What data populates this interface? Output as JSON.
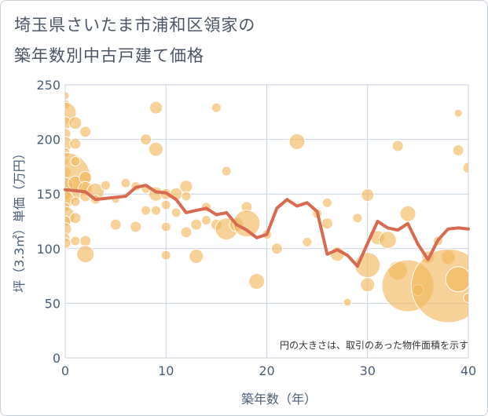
{
  "title_line1": "埼玉県さいたま市浦和区領家の",
  "title_line2": "築年数別中古戸建て価格",
  "chart_data": {
    "type": "scatter",
    "xlabel": "築年数（年）",
    "ylabel": "坪（3.3㎡）単価（万円）",
    "note": "円の大きさは、取引のあった物件面積を示す",
    "xlim": [
      0,
      40
    ],
    "ylim": [
      0,
      250
    ],
    "x_ticks": [
      0,
      10,
      20,
      30,
      40
    ],
    "y_ticks": [
      0,
      50,
      100,
      150,
      200,
      250
    ],
    "grid": true,
    "colors": {
      "bubble": "#f0b65a",
      "line": "#d86a52",
      "grid": "#c9d3e0",
      "axis_text": "#4b5e78"
    },
    "series": [
      {
        "type": "bubble",
        "points": [
          {
            "x": 0,
            "y": 240,
            "s": 5
          },
          {
            "x": 0,
            "y": 232,
            "s": 6
          },
          {
            "x": 0,
            "y": 224,
            "s": 14
          },
          {
            "x": 0,
            "y": 215,
            "s": 8
          },
          {
            "x": 0,
            "y": 205,
            "s": 7
          },
          {
            "x": 0,
            "y": 196,
            "s": 9
          },
          {
            "x": 0,
            "y": 188,
            "s": 6
          },
          {
            "x": 0,
            "y": 180,
            "s": 5
          },
          {
            "x": 0,
            "y": 170,
            "s": 7
          },
          {
            "x": 0,
            "y": 165,
            "s": 32
          },
          {
            "x": 0,
            "y": 158,
            "s": 10
          },
          {
            "x": 0,
            "y": 150,
            "s": 8
          },
          {
            "x": 0,
            "y": 145,
            "s": 11
          },
          {
            "x": 0,
            "y": 138,
            "s": 6
          },
          {
            "x": 0,
            "y": 130,
            "s": 12
          },
          {
            "x": 0,
            "y": 125,
            "s": 7
          },
          {
            "x": 0,
            "y": 118,
            "s": 8
          },
          {
            "x": 0,
            "y": 110,
            "s": 6
          },
          {
            "x": 0,
            "y": 105,
            "s": 7
          },
          {
            "x": 1,
            "y": 215,
            "s": 8
          },
          {
            "x": 1,
            "y": 196,
            "s": 7
          },
          {
            "x": 1,
            "y": 180,
            "s": 6
          },
          {
            "x": 1,
            "y": 160,
            "s": 9
          },
          {
            "x": 1,
            "y": 143,
            "s": 6
          },
          {
            "x": 1,
            "y": 128,
            "s": 7
          },
          {
            "x": 1,
            "y": 107,
            "s": 6
          },
          {
            "x": 2,
            "y": 207,
            "s": 7
          },
          {
            "x": 2,
            "y": 165,
            "s": 8
          },
          {
            "x": 2,
            "y": 155,
            "s": 9
          },
          {
            "x": 2,
            "y": 148,
            "s": 7
          },
          {
            "x": 2,
            "y": 107,
            "s": 7
          },
          {
            "x": 2,
            "y": 95,
            "s": 11
          },
          {
            "x": 3,
            "y": 152,
            "s": 11
          },
          {
            "x": 3,
            "y": 145,
            "s": 6
          },
          {
            "x": 4,
            "y": 158,
            "s": 6
          },
          {
            "x": 5,
            "y": 145,
            "s": 5
          },
          {
            "x": 5,
            "y": 122,
            "s": 7
          },
          {
            "x": 6,
            "y": 160,
            "s": 6
          },
          {
            "x": 7,
            "y": 157,
            "s": 6
          },
          {
            "x": 7,
            "y": 120,
            "s": 7
          },
          {
            "x": 8,
            "y": 200,
            "s": 7
          },
          {
            "x": 8,
            "y": 155,
            "s": 6
          },
          {
            "x": 8,
            "y": 135,
            "s": 6
          },
          {
            "x": 9,
            "y": 229,
            "s": 8
          },
          {
            "x": 9,
            "y": 191,
            "s": 9
          },
          {
            "x": 9,
            "y": 150,
            "s": 9
          },
          {
            "x": 9,
            "y": 135,
            "s": 6
          },
          {
            "x": 10,
            "y": 150,
            "s": 7
          },
          {
            "x": 10,
            "y": 140,
            "s": 6
          },
          {
            "x": 10,
            "y": 120,
            "s": 6
          },
          {
            "x": 10,
            "y": 94,
            "s": 6
          },
          {
            "x": 11,
            "y": 150,
            "s": 8
          },
          {
            "x": 11,
            "y": 133,
            "s": 6
          },
          {
            "x": 12,
            "y": 157,
            "s": 8
          },
          {
            "x": 12,
            "y": 148,
            "s": 6
          },
          {
            "x": 12,
            "y": 115,
            "s": 7
          },
          {
            "x": 13,
            "y": 93,
            "s": 9
          },
          {
            "x": 13,
            "y": 122,
            "s": 7
          },
          {
            "x": 14,
            "y": 138,
            "s": 6
          },
          {
            "x": 14,
            "y": 126,
            "s": 6
          },
          {
            "x": 15,
            "y": 229,
            "s": 6
          },
          {
            "x": 15,
            "y": 122,
            "s": 7
          },
          {
            "x": 16,
            "y": 171,
            "s": 6
          },
          {
            "x": 16,
            "y": 118,
            "s": 14
          },
          {
            "x": 17,
            "y": 122,
            "s": 9
          },
          {
            "x": 18,
            "y": 138,
            "s": 7
          },
          {
            "x": 18,
            "y": 123,
            "s": 17
          },
          {
            "x": 19,
            "y": 70,
            "s": 10
          },
          {
            "x": 20,
            "y": 113,
            "s": 6
          },
          {
            "x": 21,
            "y": 100,
            "s": 7
          },
          {
            "x": 23,
            "y": 198,
            "s": 10
          },
          {
            "x": 24,
            "y": 106,
            "s": 6
          },
          {
            "x": 25,
            "y": 132,
            "s": 6
          },
          {
            "x": 26,
            "y": 142,
            "s": 6
          },
          {
            "x": 26,
            "y": 123,
            "s": 7
          },
          {
            "x": 27,
            "y": 95,
            "s": 9
          },
          {
            "x": 28,
            "y": 51,
            "s": 5
          },
          {
            "x": 29,
            "y": 128,
            "s": 6
          },
          {
            "x": 30,
            "y": 149,
            "s": 8
          },
          {
            "x": 30,
            "y": 85,
            "s": 16
          },
          {
            "x": 30,
            "y": 67,
            "s": 9
          },
          {
            "x": 31,
            "y": 110,
            "s": 9
          },
          {
            "x": 32,
            "y": 108,
            "s": 11
          },
          {
            "x": 33,
            "y": 194,
            "s": 7
          },
          {
            "x": 33,
            "y": 80,
            "s": 12
          },
          {
            "x": 34,
            "y": 132,
            "s": 10
          },
          {
            "x": 34,
            "y": 66,
            "s": 33
          },
          {
            "x": 35,
            "y": 62,
            "s": 7
          },
          {
            "x": 36,
            "y": 92,
            "s": 8
          },
          {
            "x": 37,
            "y": 107,
            "s": 6
          },
          {
            "x": 38,
            "y": 92,
            "s": 9
          },
          {
            "x": 38,
            "y": 66,
            "s": 47
          },
          {
            "x": 39,
            "y": 224,
            "s": 5
          },
          {
            "x": 39,
            "y": 190,
            "s": 7
          },
          {
            "x": 39,
            "y": 72,
            "s": 16
          },
          {
            "x": 40,
            "y": 174,
            "s": 7
          },
          {
            "x": 40,
            "y": 55,
            "s": 6
          }
        ]
      },
      {
        "type": "line",
        "x": [
          0,
          1,
          2,
          3,
          4,
          5,
          6,
          7,
          8,
          9,
          10,
          11,
          12,
          13,
          14,
          15,
          16,
          17,
          18,
          19,
          20,
          21,
          22,
          23,
          24,
          25,
          26,
          27,
          28,
          29,
          30,
          31,
          32,
          33,
          34,
          35,
          36,
          37,
          38,
          39,
          40
        ],
        "y": [
          154,
          153,
          152,
          145,
          146,
          147,
          148,
          156,
          158,
          152,
          151,
          145,
          133,
          135,
          137,
          131,
          133,
          122,
          117,
          110,
          113,
          137,
          145,
          139,
          142,
          134,
          95,
          99,
          94,
          84,
          105,
          125,
          119,
          117,
          123,
          104,
          90,
          108,
          118,
          119,
          118
        ]
      }
    ]
  }
}
